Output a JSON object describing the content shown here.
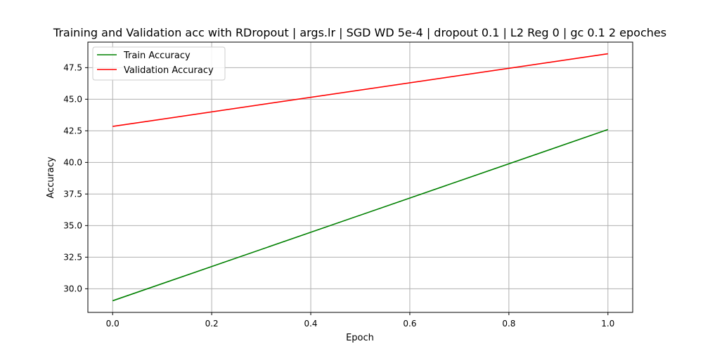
{
  "chart_data": {
    "type": "line",
    "title": "Training and Validation acc with RDropout | args.lr | SGD WD 5e-4 | dropout 0.1 | L2 Reg 0 | gc 0.1 2 epoches",
    "xlabel": "Epoch",
    "ylabel": "Accuracy",
    "xlim": [
      -0.05,
      1.05
    ],
    "ylim": [
      28.13,
      49.52
    ],
    "xticks": [
      0.0,
      0.2,
      0.4,
      0.6,
      0.8,
      1.0
    ],
    "xtick_labels": [
      "0.0",
      "0.2",
      "0.4",
      "0.6",
      "0.8",
      "1.0"
    ],
    "yticks": [
      30.0,
      32.5,
      35.0,
      37.5,
      40.0,
      42.5,
      45.0,
      47.5
    ],
    "ytick_labels": [
      "30.0",
      "32.5",
      "35.0",
      "37.5",
      "40.0",
      "42.5",
      "45.0",
      "47.5"
    ],
    "grid": true,
    "legend_position": "top-left",
    "series": [
      {
        "name": "Train Accuracy",
        "color": "#008000",
        "x": [
          0,
          1
        ],
        "y": [
          29.05,
          42.6
        ]
      },
      {
        "name": "Validation Accuracy",
        "color": "#ff0000",
        "x": [
          0,
          1
        ],
        "y": [
          42.85,
          48.6
        ]
      }
    ]
  }
}
